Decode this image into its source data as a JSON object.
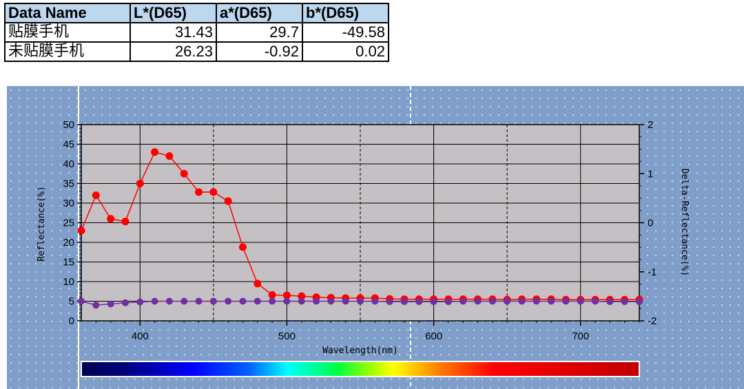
{
  "table": {
    "headers": [
      "Data Name",
      "L*(D65)",
      "a*(D65)",
      "b*(D65)"
    ],
    "rows": [
      {
        "name": "贴膜手机",
        "L": "31.43",
        "a": "29.7",
        "b": "-49.58"
      },
      {
        "name": "未贴膜手机",
        "L": "26.23",
        "a": "-0.92",
        "b": "0.02"
      }
    ]
  },
  "chart_data": {
    "type": "line",
    "xlabel": "Wavelength(nm)",
    "ylabel": "Reflectance(%)",
    "y2label": "Delta-Reflectance(%)",
    "xlim": [
      360,
      740
    ],
    "ylim": [
      0,
      50
    ],
    "y2lim": [
      -2,
      2
    ],
    "x_ticks": [
      400,
      500,
      600,
      700
    ],
    "y_ticks": [
      0,
      5,
      10,
      15,
      20,
      25,
      30,
      35,
      40,
      45,
      50
    ],
    "y2_ticks": [
      -2,
      -1,
      0,
      1,
      2
    ],
    "grid": true,
    "colors": {
      "series1": "#ff0000",
      "series2": "#7030a0",
      "grid_bg": "#c4c0c4",
      "panel_bg": "#7f9ec9"
    },
    "x": [
      360,
      370,
      380,
      390,
      400,
      410,
      420,
      430,
      440,
      450,
      460,
      470,
      480,
      490,
      500,
      510,
      520,
      530,
      540,
      550,
      560,
      570,
      580,
      590,
      600,
      610,
      620,
      630,
      640,
      650,
      660,
      670,
      680,
      690,
      700,
      710,
      720,
      730,
      740
    ],
    "series": [
      {
        "values": [
          23,
          32,
          26,
          25.3,
          35,
          43,
          42,
          37.5,
          32.8,
          32.8,
          30.5,
          18.8,
          9.5,
          6.6,
          6.5,
          6.3,
          6,
          5.9,
          5.8,
          5.8,
          5.8,
          5.6,
          5.5,
          5.5,
          5.5,
          5.5,
          5.5,
          5.5,
          5.5,
          5.4,
          5.5,
          5.5,
          5.5,
          5.4,
          5.4,
          5.4,
          5.4,
          5.4,
          5.4
        ]
      },
      {
        "values": [
          5,
          4,
          4.3,
          4.6,
          4.8,
          5,
          5,
          5,
          5,
          5,
          5,
          5,
          5,
          5,
          5,
          5,
          5,
          5,
          5,
          5,
          5,
          4.9,
          4.9,
          4.9,
          4.9,
          4.9,
          5,
          5,
          5,
          5,
          5,
          5,
          5,
          5,
          5,
          5,
          4.9,
          4.9,
          4.9
        ]
      }
    ]
  }
}
